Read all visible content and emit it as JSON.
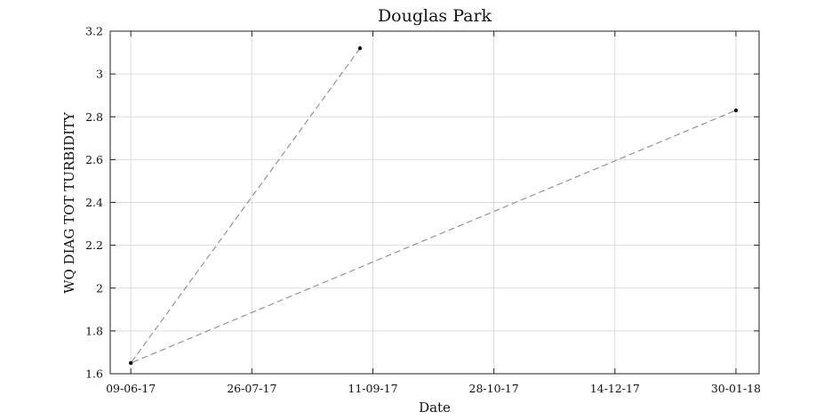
{
  "chart_data": {
    "type": "line",
    "title": "Douglas Park",
    "xlabel": "Date",
    "ylabel": "WQ DIAG TOT TURBIDITY",
    "x_type": "date",
    "x_tick_dates": [
      "2017-06-09",
      "2017-07-26",
      "2017-09-11",
      "2017-10-28",
      "2017-12-14",
      "2018-01-30"
    ],
    "x_tick_labels": [
      "09-06-17",
      "26-07-17",
      "11-09-17",
      "28-10-17",
      "14-12-17",
      "30-01-18"
    ],
    "xlim": [
      "2017-06-01",
      "2018-02-08"
    ],
    "ylim": [
      1.6,
      3.2
    ],
    "y_ticks": [
      1.6,
      1.8,
      2.0,
      2.2,
      2.4,
      2.6,
      2.8,
      3.0,
      3.2
    ],
    "y_tick_labels": [
      "1.6",
      "1.8",
      "2",
      "2.2",
      "2.4",
      "2.6",
      "2.8",
      "3",
      "3.2"
    ],
    "grid": true,
    "series": [
      {
        "line_style": "dashed",
        "line_color": "#8a8a8a",
        "marker_color": "#111111",
        "points": [
          {
            "x": "2017-09-06",
            "y": 3.12
          },
          {
            "x": "2017-06-09",
            "y": 1.65
          },
          {
            "x": "2018-01-30",
            "y": 2.83
          }
        ]
      }
    ]
  }
}
